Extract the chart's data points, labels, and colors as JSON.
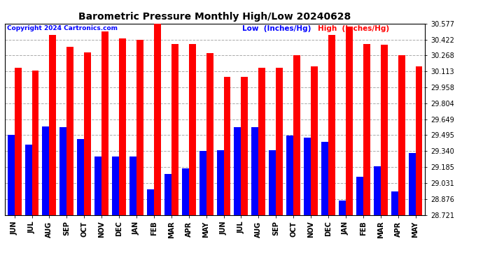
{
  "title": "Barometric Pressure Monthly High/Low 20240628",
  "copyright": "Copyright 2024 Cartronics.com",
  "legend_low": "Low  (Inches/Hg)",
  "legend_high": "High  (Inches/Hg)",
  "categories": [
    "JUN",
    "JUL",
    "AUG",
    "SEP",
    "OCT",
    "NOV",
    "DEC",
    "JAN",
    "FEB",
    "MAR",
    "APR",
    "MAY",
    "JUN",
    "JUL",
    "AUG",
    "SEP",
    "OCT",
    "NOV",
    "DEC",
    "JAN",
    "FEB",
    "MAR",
    "APR",
    "MAY"
  ],
  "high_values": [
    30.15,
    30.12,
    30.47,
    30.35,
    30.3,
    30.5,
    30.43,
    30.42,
    30.58,
    30.38,
    30.38,
    30.29,
    30.06,
    30.06,
    30.15,
    30.15,
    30.27,
    30.16,
    30.47,
    30.55,
    30.38,
    30.37,
    30.27,
    30.16
  ],
  "low_values": [
    29.5,
    29.4,
    29.58,
    29.57,
    29.46,
    29.29,
    29.29,
    29.29,
    28.97,
    29.12,
    29.17,
    29.34,
    29.35,
    29.57,
    29.57,
    29.35,
    29.49,
    29.47,
    29.43,
    28.86,
    29.09,
    29.19,
    28.95,
    29.32
  ],
  "ylim_min": 28.721,
  "ylim_max": 30.577,
  "yticks": [
    28.721,
    28.876,
    29.031,
    29.185,
    29.34,
    29.495,
    29.649,
    29.804,
    29.958,
    30.113,
    30.268,
    30.422,
    30.577
  ],
  "bar_color_high": "#FF0000",
  "bar_color_low": "#0000FF",
  "background_color": "#FFFFFF",
  "grid_color": "#AAAAAA",
  "title_fontsize": 10,
  "tick_fontsize": 7,
  "copyright_fontsize": 6.5,
  "legend_fontsize": 7.5,
  "bar_width": 0.4
}
